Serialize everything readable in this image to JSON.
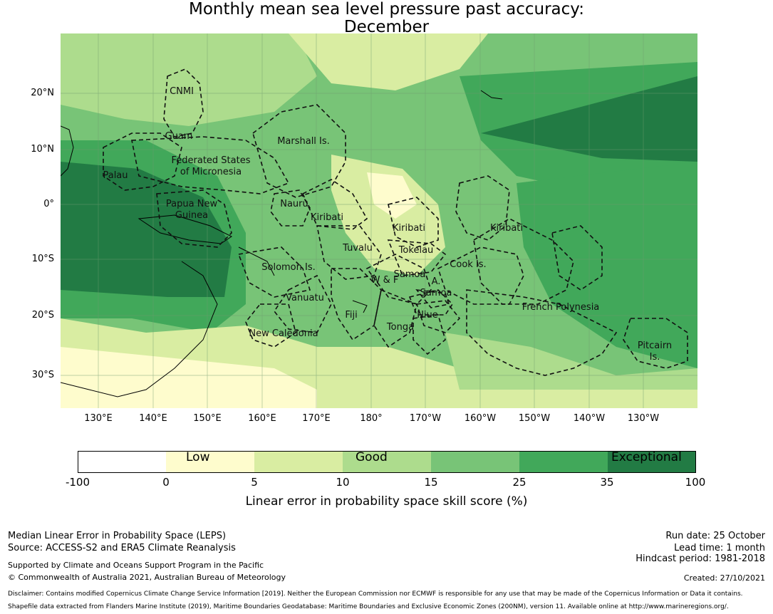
{
  "title": {
    "line1": "Monthly mean sea level pressure past accuracy:",
    "line2": "December"
  },
  "map": {
    "lat_labels": [
      "20°N",
      "10°N",
      "0°",
      "10°S",
      "20°S",
      "30°S"
    ],
    "lon_labels": [
      "130°E",
      "140°E",
      "150°E",
      "160°E",
      "170°E",
      "180°",
      "170°W",
      "160°W",
      "150°W",
      "140°W",
      "130°W"
    ],
    "regions": {
      "cnmi": "CNMI",
      "guam": "Guam",
      "marshall": "Marshall Is.",
      "fsm_1": "Federated States",
      "fsm_2": "of Micronesia",
      "palau": "Palau",
      "png_1": "Papua New",
      "png_2": "Guinea",
      "nauru": "Nauru",
      "kiribati_west": "Kiribati",
      "kiribati_central": "Kiribati",
      "kiribati_east": "Kiribati",
      "tuvalu": "Tuvalu",
      "tokelau": "Tokelau",
      "solomon": "Solomon Is.",
      "samoa": "Samoa",
      "wf": "W & F",
      "am_samoa_a": "A.",
      "am_samoa": "Samoa",
      "cook": "Cook Is.",
      "vanuatu": "Vanuatu",
      "fiji": "Fiji",
      "niue": "Niue",
      "french_polynesia": "French Polynesia",
      "tonga": "Tonga",
      "new_caledonia": "New Caledonia",
      "pitcairn_1": "Pitcairn",
      "pitcairn_2": "Is."
    }
  },
  "colorbar": {
    "tick_labels": [
      "-100",
      "0",
      "5",
      "10",
      "15",
      "25",
      "35",
      "100"
    ],
    "category_labels": [
      "Low",
      "Good",
      "Exceptional"
    ],
    "colors": [
      "#ffffff",
      "#fefccd",
      "#d9eda2",
      "#addc8d",
      "#78c477",
      "#41a85a",
      "#227b44"
    ],
    "title": "Linear error in probability space skill score (%)"
  },
  "footer": {
    "left1": "Median Linear Error in Probability Space (LEPS)",
    "left2": "Source: ACCESS-S2 and ERA5 Climate Reanalysis",
    "left3": "Supported by Climate and Oceans Support Program in the Pacific",
    "left4": "© Commonwealth of Australia 2021, Australian Bureau of Meteorology",
    "right1": "Run date: 25 October",
    "right2": "Lead time: 1 month",
    "right3": "Hindcast period: 1981-2018",
    "right4": "Created: 27/10/2021",
    "disclaimer1": "Disclaimer: Contains modified Copernicus Climate Change Service Information [2019]. Neither the European Commission nor ECMWF is responsible for any use that may be made of the Copernicus Information or Data it contains.",
    "disclaimer2": "Shapefile data extracted from Flanders Marine Institute (2019), Maritime Boundaries Geodatabase: Maritime Boundaries and Exclusive Economic Zones (200NM), version 11. Available online at http://www.marineregions.org/."
  }
}
